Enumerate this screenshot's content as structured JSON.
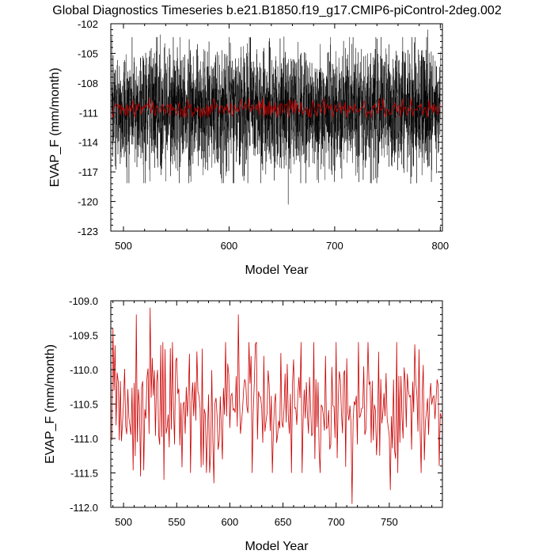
{
  "title": "Global Diagnostics Timeseries b.e21.B1850.f19_g17.CMIP6-piControl-2deg.002",
  "chart_data": [
    {
      "type": "line",
      "xlabel": "Model Year",
      "ylabel": "EVAP_F (mm/month)",
      "xlim": [
        488,
        802
      ],
      "ylim": [
        -123,
        -102
      ],
      "xticks": [
        500,
        600,
        700,
        800
      ],
      "yticks": [
        -123,
        -120,
        -117,
        -114,
        -111,
        -108,
        -105,
        -102
      ],
      "ytick_labels": [
        "-123",
        "-120",
        "-117",
        "-114",
        "-111",
        "-108",
        "-105",
        "-102"
      ],
      "grid": false,
      "series": [
        {
          "style": "monthly",
          "color": "#000000",
          "x_start": 489,
          "x_end": 800,
          "center": -110.6,
          "typical_range": [
            -116.5,
            -105.0
          ],
          "extremes": [
            {
              "x": 535,
              "y": -103.1
            },
            {
              "x": 652,
              "y": -103.3
            },
            {
              "x": 788,
              "y": -102.6
            },
            {
              "x": 656,
              "y": -120.3
            },
            {
              "x": 614,
              "y": -117.9
            },
            {
              "x": 727,
              "y": -117.8
            },
            {
              "x": 772,
              "y": -118.2
            }
          ]
        },
        {
          "style": "annual",
          "color": "#cc0000",
          "x_start": 489,
          "x_end": 800,
          "center": -110.6,
          "typical_range": [
            -111.5,
            -109.5
          ]
        }
      ]
    },
    {
      "type": "line",
      "xlabel": "Model Year",
      "ylabel": "EVAP_F (mm/month)",
      "xlim": [
        488,
        800
      ],
      "ylim": [
        -112.0,
        -109.0
      ],
      "xticks": [
        500,
        550,
        600,
        650,
        700,
        750
      ],
      "yticks": [
        -112.0,
        -111.5,
        -111.0,
        -110.5,
        -110.0,
        -109.5,
        -109.0
      ],
      "ytick_labels": [
        "-112.0",
        "-111.5",
        "-111.0",
        "-110.5",
        "-110.0",
        "-109.5",
        "-109.0"
      ],
      "grid": false,
      "series": [
        {
          "style": "annual",
          "color": "#cc0000",
          "x_start": 489,
          "x_end": 799,
          "center": -110.55,
          "typical_range": [
            -111.5,
            -109.6
          ],
          "extremes": [
            {
              "x": 490,
              "y": -109.4
            },
            {
              "x": 512,
              "y": -109.2
            },
            {
              "x": 525,
              "y": -109.1
            },
            {
              "x": 608,
              "y": -109.2
            },
            {
              "x": 516,
              "y": -111.55
            },
            {
              "x": 538,
              "y": -111.6
            },
            {
              "x": 585,
              "y": -111.65
            },
            {
              "x": 715,
              "y": -111.95
            },
            {
              "x": 751,
              "y": -111.75
            },
            {
              "x": 797,
              "y": -111.4
            }
          ]
        }
      ]
    }
  ]
}
